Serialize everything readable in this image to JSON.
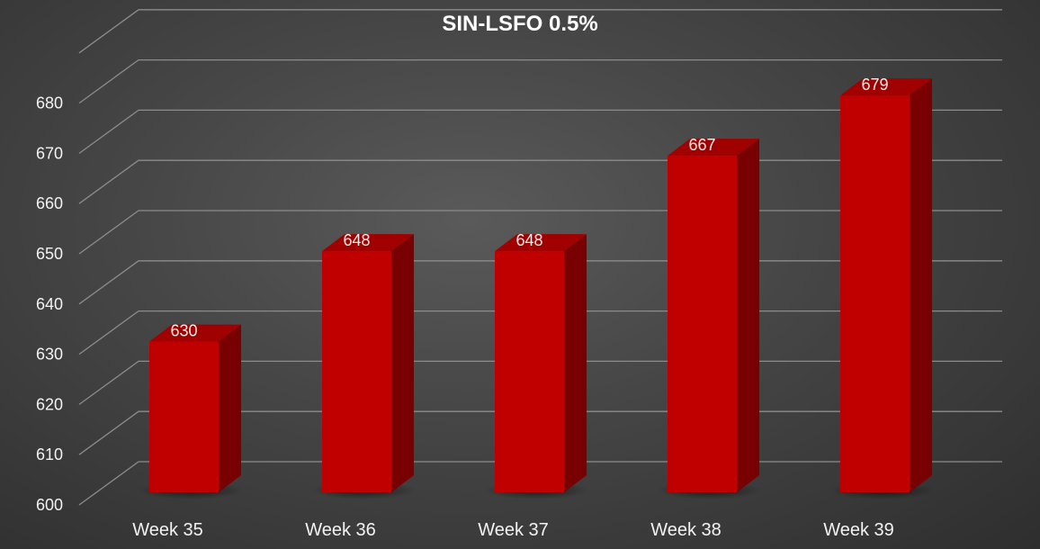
{
  "chart_data": {
    "type": "bar",
    "title": "SIN-LSFO 0.5%",
    "categories": [
      "Week 35",
      "Week 36",
      "Week 37",
      "Week 38",
      "Week 39"
    ],
    "values": [
      630,
      648,
      648,
      667,
      679
    ],
    "data_labels": [
      "630",
      "648",
      "648",
      "667",
      "679"
    ],
    "xlabel": "",
    "ylabel": "",
    "ylim": [
      600,
      690
    ],
    "yticks": [
      600,
      610,
      620,
      630,
      640,
      650,
      660,
      670,
      680
    ],
    "grid": true,
    "legend": "none",
    "style": "3d-column",
    "colors": {
      "bar_front": "#c00000",
      "bar_top": "#a00000",
      "bar_side": "#780000"
    }
  }
}
